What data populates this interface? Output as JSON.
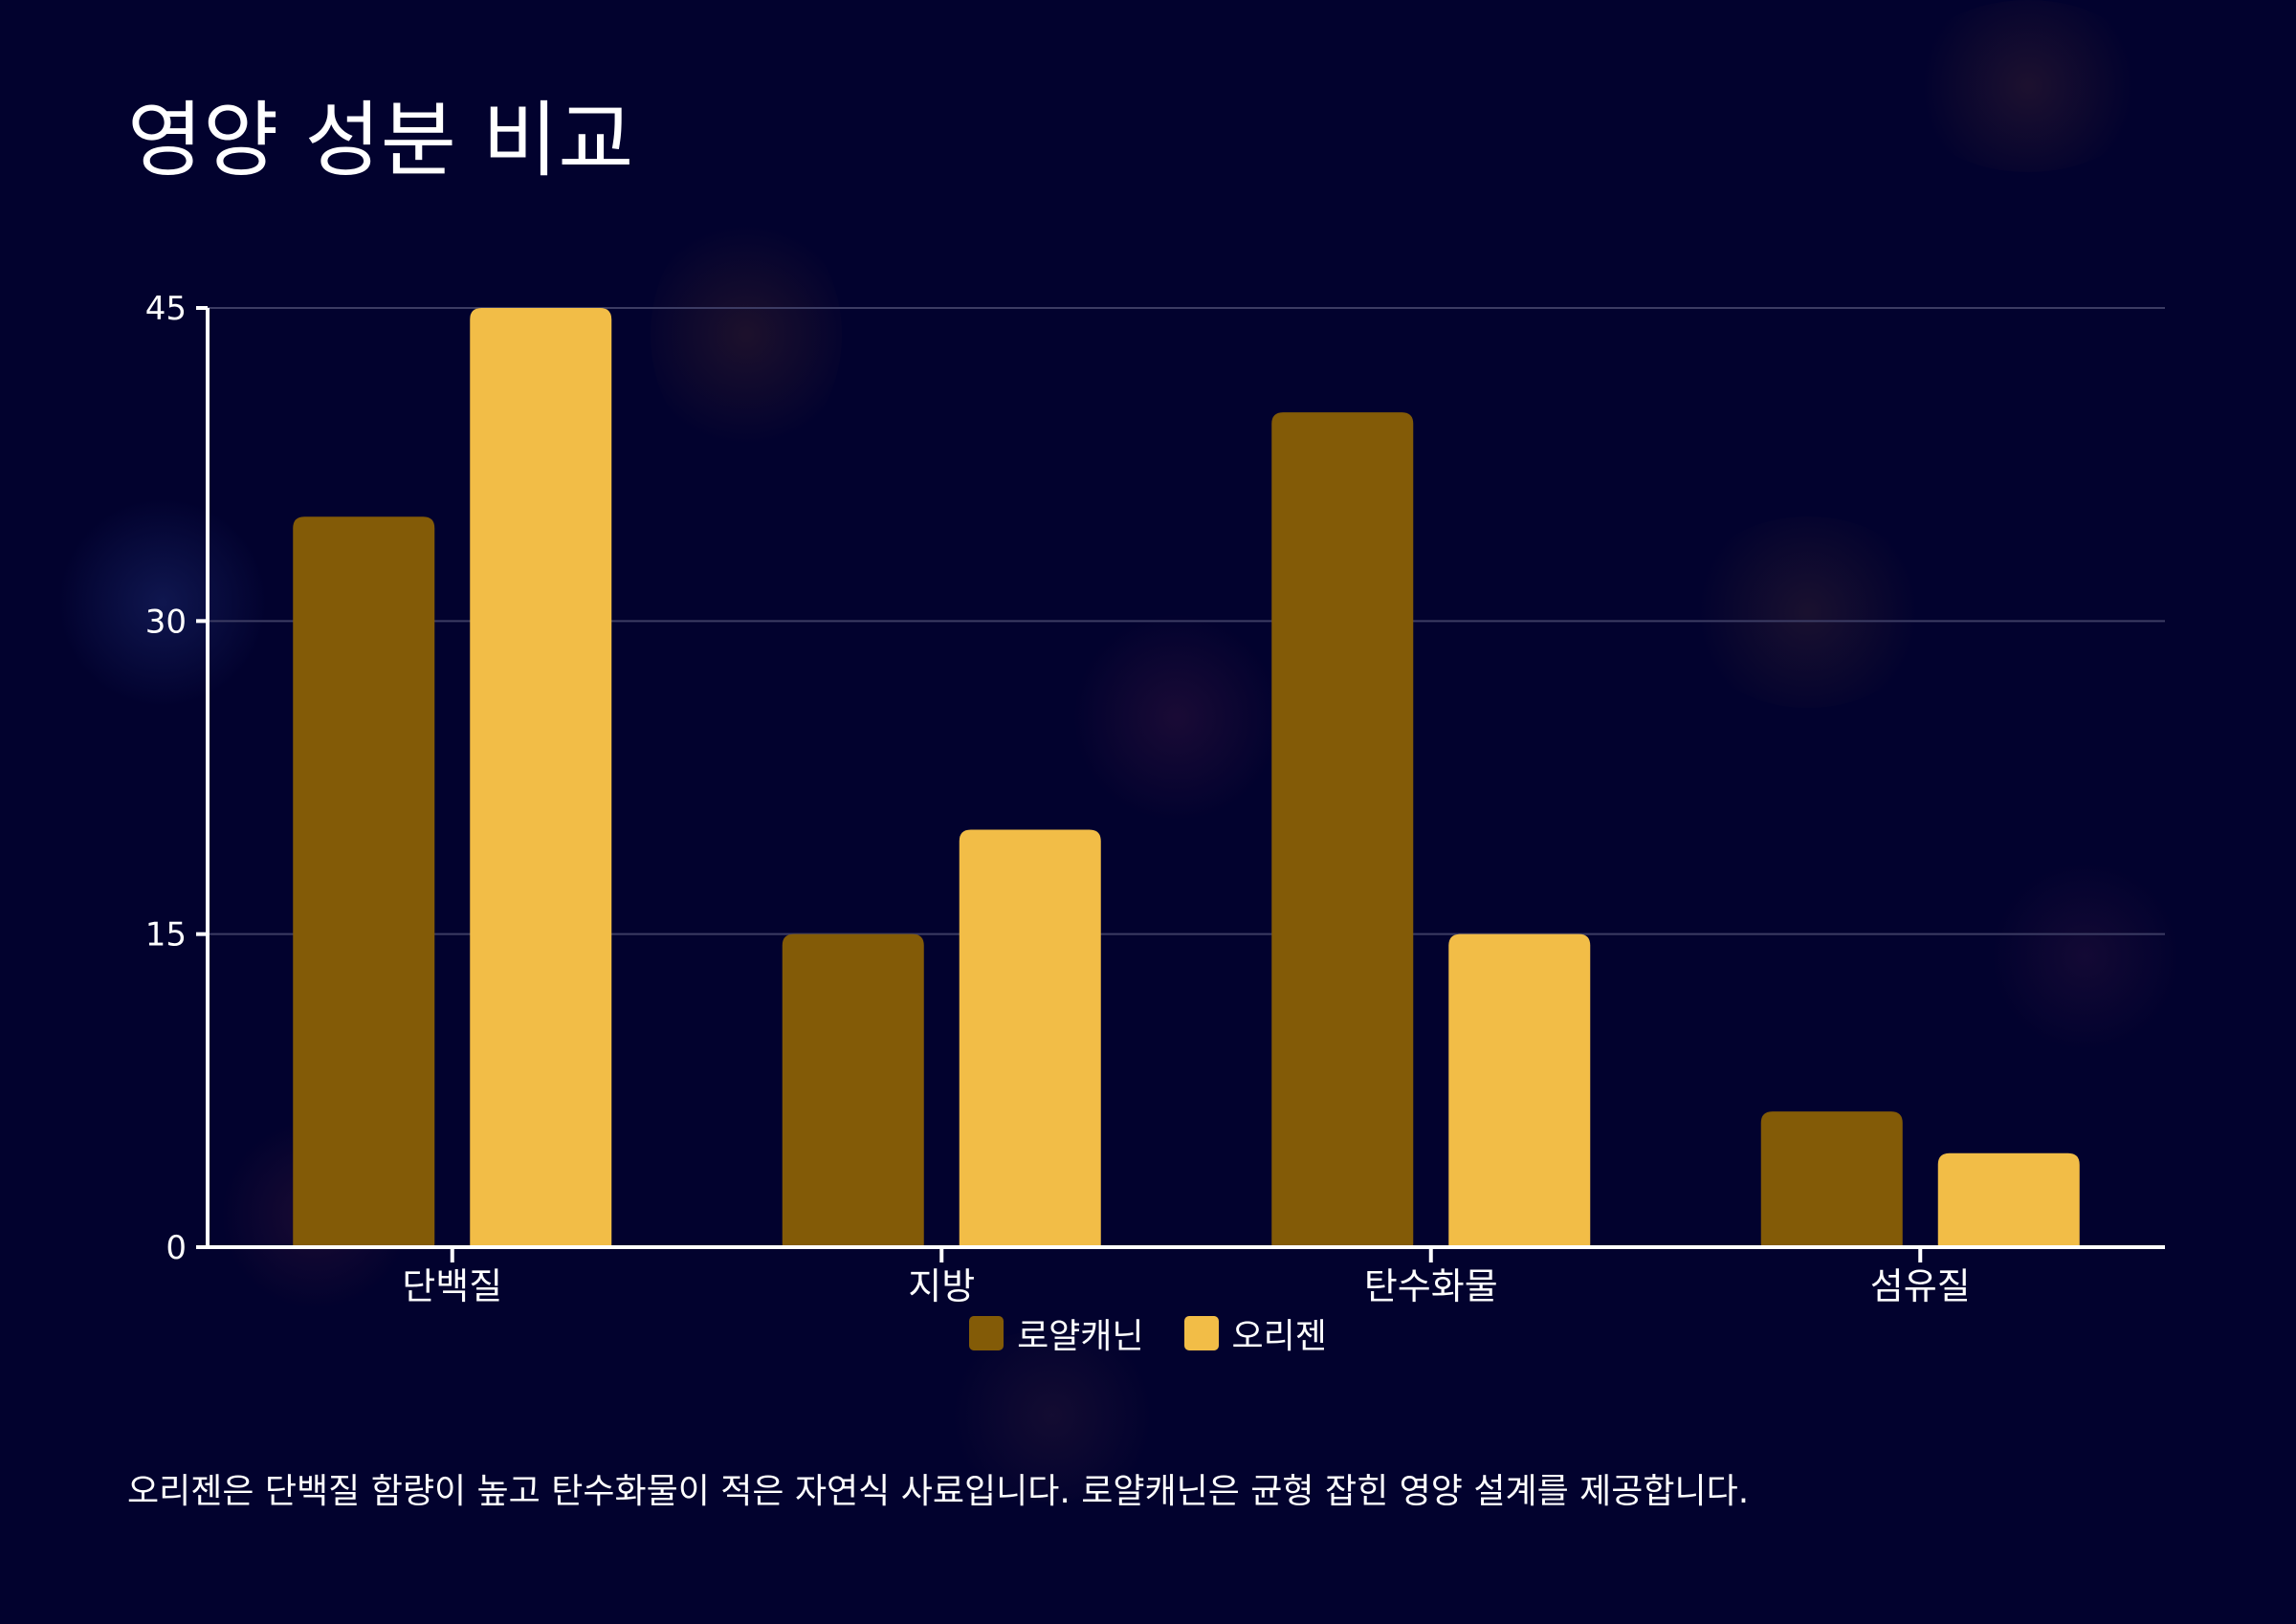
{
  "title": "영양 성분 비교",
  "caption": "오리젠은 단백질 함량이 높고 탄수화물이 적은 자연식 사료입니다. 로얄캐닌은 균형 잡힌 영양 설계를 제공합니다.",
  "colors": {
    "background": "#02022e",
    "series_1": "#835b07",
    "series_2": "#f2bd47",
    "grid": "#3c3c63",
    "axis": "#ffffff"
  },
  "chart_data": {
    "type": "bar",
    "categories": [
      "단백질",
      "지방",
      "탄수화물",
      "섬유질"
    ],
    "series": [
      {
        "name": "로얄캐닌",
        "values": [
          35,
          15,
          40,
          6.5
        ]
      },
      {
        "name": "오리젠",
        "values": [
          45,
          20,
          15,
          4.5
        ]
      }
    ],
    "yticks": [
      0,
      15,
      30,
      45
    ],
    "ylim": [
      0,
      45
    ],
    "grid": true,
    "legend_position": "bottom-center"
  }
}
